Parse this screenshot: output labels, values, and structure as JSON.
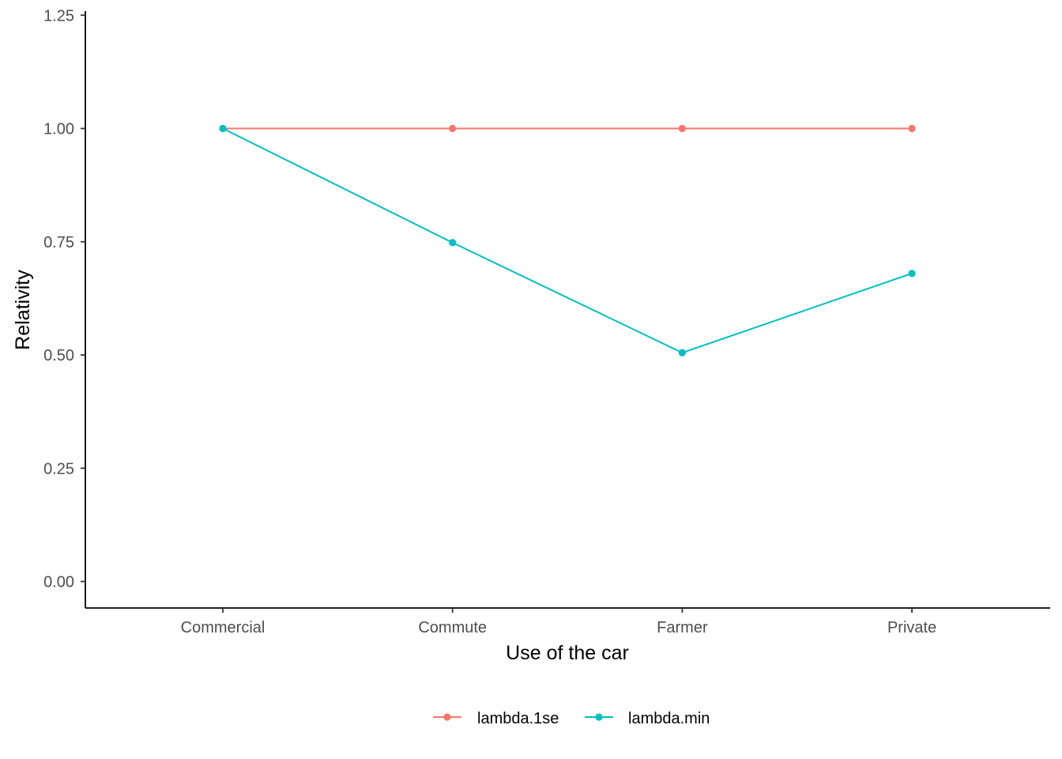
{
  "chart_data": {
    "type": "line",
    "title": "",
    "xlabel": "Use of the car",
    "ylabel": "Relativity",
    "categories": [
      "Commercial",
      "Commute",
      "Farmer",
      "Private"
    ],
    "ylim": [
      -0.057,
      1.25
    ],
    "yticks": [
      "0.00",
      "0.25",
      "0.50",
      "0.75",
      "1.00",
      "1.25"
    ],
    "grid": false,
    "legend_position": "bottom",
    "series": [
      {
        "name": "lambda.1se",
        "color": "#F8766D",
        "values": [
          1.0,
          1.0,
          1.0,
          1.0
        ]
      },
      {
        "name": "lambda.min",
        "color": "#00BFC4",
        "values": [
          1.0,
          0.748,
          0.505,
          0.68
        ]
      }
    ]
  }
}
